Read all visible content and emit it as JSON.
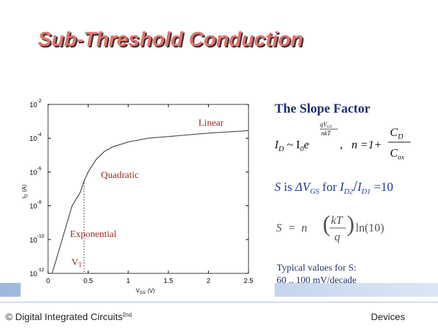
{
  "slide_title": "Sub-Threshold Conduction",
  "chart_data": {
    "type": "line",
    "ylog": true,
    "ylabel": {
      "main": "I",
      "sub": "D",
      "unit": "(A)"
    },
    "xlabel": {
      "main": "V",
      "sub": "GS",
      "unit": "(V)"
    },
    "x": [
      0.05,
      0.1,
      0.2,
      0.3,
      0.4,
      0.45,
      0.5,
      0.6,
      0.7,
      0.8,
      1.0,
      1.25,
      1.5,
      2.0,
      2.5
    ],
    "values": [
      1e-12,
      6e-12,
      2.5e-10,
      1e-08,
      6e-08,
      3e-07,
      1e-06,
      5.5e-06,
      1.6e-05,
      3e-05,
      6e-05,
      0.0001,
      0.000125,
      0.0002,
      0.00028
    ],
    "color": "#444444",
    "xlim": [
      0,
      2.5
    ],
    "xticks": [
      0,
      0.5,
      1,
      1.5,
      2,
      2.5
    ],
    "ylim": [
      1e-12,
      0.01
    ],
    "yticks": [
      {
        "value": 1e-12,
        "label": "10",
        "exponent": "-12"
      },
      {
        "value": 1e-10,
        "label": "10",
        "exponent": "-10"
      },
      {
        "value": 1e-08,
        "label": "10",
        "exponent": "-8"
      },
      {
        "value": 1e-06,
        "label": "10",
        "exponent": "-6"
      },
      {
        "value": 0.0001,
        "label": "10",
        "exponent": "-4"
      },
      {
        "value": 0.01,
        "label": "10",
        "exponent": "-2"
      }
    ],
    "annotations": [
      {
        "text": "Linear"
      },
      {
        "text": "Quadratic"
      },
      {
        "text": "Exponential"
      },
      {
        "text": "V",
        "sub": "T",
        "x": 0.45
      }
    ]
  },
  "slope_heading": "The Slope Factor",
  "formula_id": {
    "i": "I",
    "i_sub": "D",
    "rel": " ~ I",
    "i0_sub": "0",
    "e": "e",
    "exp_num": "qV",
    "exp_num_sub": "GS",
    "exp_den": "nkT",
    "sep": ",",
    "n_eq": "n =1+",
    "c_num": "C",
    "c_num_sub": "D",
    "c_den": "C",
    "c_den_sub": "ox"
  },
  "s_def": {
    "s": "S",
    "is": " is ",
    "dv": "ΔV",
    "dv_sub": "GS",
    "for": " for ",
    "i2": "I",
    "i2_sub": "D2",
    "slash": "/",
    "i1": "I",
    "i1_sub": "D1",
    "eq": " =10"
  },
  "formula_s": {
    "lhs": "S  =  n",
    "kt": "kT",
    "q": "q",
    "ln": "ln(10)"
  },
  "typical": [
    "Typical values for S:",
    "60 .. 100 mV/decade"
  ],
  "footer": {
    "left": "© Digital Integrated Circuits",
    "edition": "2nd",
    "right": "Devices"
  }
}
